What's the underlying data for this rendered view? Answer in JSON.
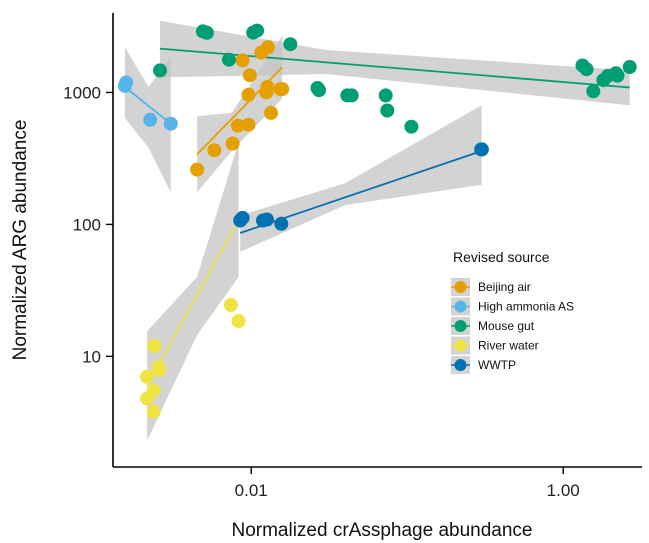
{
  "chart_data": {
    "type": "scatter",
    "xlabel": "Normalized crAssphage abundance",
    "ylabel": "Normalized ARG abundance",
    "x_scale": "log",
    "y_scale": "log",
    "xlim": [
      0.0013,
      3.2
    ],
    "ylim": [
      1.45,
      4000
    ],
    "x_ticks": [
      {
        "value": 0.01,
        "label": "0.01"
      },
      {
        "value": 1,
        "label": "1.00"
      }
    ],
    "y_ticks": [
      {
        "value": 10,
        "label": "10"
      },
      {
        "value": 100,
        "label": "100"
      },
      {
        "value": 1000,
        "label": "1000"
      }
    ],
    "legend": {
      "title": "Revised source",
      "placement": "right-center"
    },
    "series": [
      {
        "name": "Beijing air",
        "color": "#E69F00",
        "points": [
          [
            0.0045,
            260
          ],
          [
            0.0058,
            365
          ],
          [
            0.0076,
            410
          ],
          [
            0.0082,
            560
          ],
          [
            0.0096,
            570
          ],
          [
            0.0088,
            1750
          ],
          [
            0.0096,
            960
          ],
          [
            0.0098,
            1350
          ],
          [
            0.0116,
            2000
          ],
          [
            0.0128,
            2200
          ],
          [
            0.0127,
            1100
          ],
          [
            0.0125,
            1000
          ],
          [
            0.0134,
            700
          ],
          [
            0.0154,
            1060
          ],
          [
            0.0158,
            1060
          ]
        ],
        "fit": {
          "x": [
            0.0045,
            0.0158
          ],
          "y": [
            340,
            1550
          ]
        },
        "band": {
          "x": [
            0.0045,
            0.0075,
            0.0158
          ],
          "lower": [
            175,
            360,
            900
          ],
          "upper": [
            660,
            700,
            2700
          ]
        }
      },
      {
        "name": "High ammonia AS",
        "color": "#56B4E9",
        "points": [
          [
            0.00155,
            1120
          ],
          [
            0.00158,
            1190
          ],
          [
            0.00225,
            620
          ],
          [
            0.00305,
            580
          ]
        ],
        "fit": {
          "x": [
            0.00155,
            0.00305
          ],
          "y": [
            1100,
            580
          ]
        },
        "band": {
          "x": [
            0.00155,
            0.0022,
            0.00305
          ],
          "lower": [
            640,
            380,
            175
          ],
          "upper": [
            2200,
            1100,
            1900
          ]
        }
      },
      {
        "name": "Mouse gut",
        "color": "#009E73",
        "points": [
          [
            0.0026,
            1470
          ],
          [
            0.0049,
            2900
          ],
          [
            0.0052,
            2830
          ],
          [
            0.0072,
            1770
          ],
          [
            0.0103,
            2840
          ],
          [
            0.0109,
            2940
          ],
          [
            0.0178,
            2320
          ],
          [
            0.0266,
            1080
          ],
          [
            0.0272,
            1040
          ],
          [
            0.0413,
            950
          ],
          [
            0.0441,
            950
          ],
          [
            0.0728,
            950
          ],
          [
            0.0745,
            730
          ],
          [
            0.1064,
            550
          ],
          [
            1.33,
            1600
          ],
          [
            1.41,
            1500
          ],
          [
            1.56,
            1020
          ],
          [
            1.81,
            1240
          ],
          [
            1.94,
            1340
          ],
          [
            2.18,
            1400
          ],
          [
            2.23,
            1340
          ],
          [
            2.67,
            1560
          ]
        ],
        "fit": {
          "x": [
            0.0026,
            2.67
          ],
          "y": [
            2150,
            1090
          ]
        },
        "band": {
          "x": [
            0.0026,
            0.03,
            2.67
          ],
          "lower": [
            1300,
            1380,
            800
          ],
          "upper": [
            3500,
            2100,
            1470
          ]
        }
      },
      {
        "name": "River water",
        "color": "#F0E442",
        "points": [
          [
            0.00215,
            7.0
          ],
          [
            0.00215,
            4.8
          ],
          [
            0.00237,
            5.5
          ],
          [
            0.00237,
            3.8
          ],
          [
            0.0024,
            12.0
          ],
          [
            0.00254,
            8.3
          ],
          [
            0.00258,
            7.9
          ],
          [
            0.0074,
            24.5
          ],
          [
            0.0083,
            18.5
          ]
        ],
        "fit": {
          "x": [
            0.00215,
            0.0083
          ],
          "y": [
            6.0,
            108
          ]
        },
        "band": {
          "x": [
            0.00215,
            0.0045,
            0.0083
          ],
          "lower": [
            2.3,
            14.5,
            40
          ],
          "upper": [
            15.5,
            40,
            420
          ]
        }
      },
      {
        "name": "WWTP",
        "color": "#0072B2",
        "points": [
          [
            0.0085,
            107
          ],
          [
            0.0088,
            112
          ],
          [
            0.0119,
            107
          ],
          [
            0.0126,
            109
          ],
          [
            0.0156,
            101
          ],
          [
            0.298,
            370
          ],
          [
            0.301,
            370
          ]
        ],
        "fit": {
          "x": [
            0.0085,
            0.3
          ],
          "y": [
            86,
            360
          ]
        },
        "band": {
          "x": [
            0.0085,
            0.04,
            0.3
          ],
          "lower": [
            62,
            140,
            200
          ],
          "upper": [
            117,
            205,
            800
          ]
        }
      }
    ]
  }
}
